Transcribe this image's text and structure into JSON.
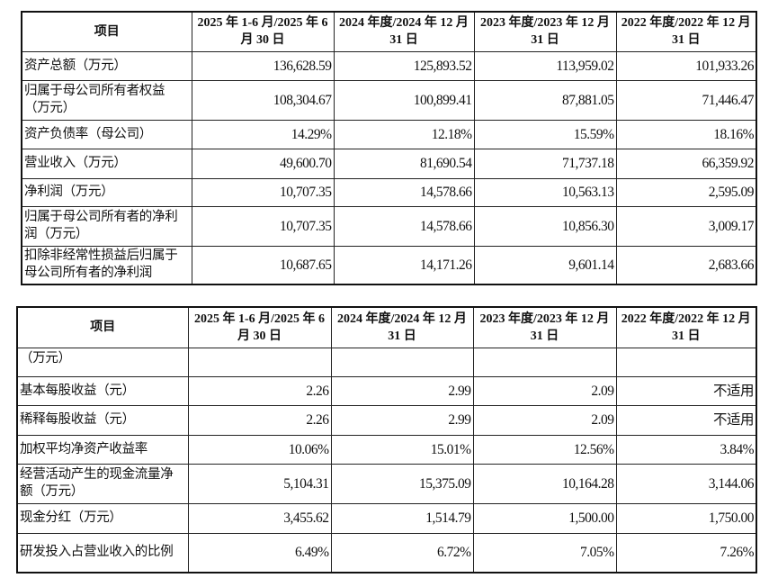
{
  "table1": {
    "headers": [
      "项目",
      "2025 年 1-6 月/2025 年 6 月 30 日",
      "2024 年度/2024 年 12 月 31 日",
      "2023 年度/2023 年 12 月 31 日",
      "2022 年度/2022 年 12 月 31 日"
    ],
    "rows": [
      {
        "label": "资产总额（万元）",
        "values": [
          "136,628.59",
          "125,893.52",
          "113,959.02",
          "101,933.26"
        ]
      },
      {
        "label": "归属于母公司所有者权益（万元）",
        "values": [
          "108,304.67",
          "100,899.41",
          "87,881.05",
          "71,446.47"
        ]
      },
      {
        "label": "资产负债率（母公司）",
        "values": [
          "14.29%",
          "12.18%",
          "15.59%",
          "18.16%"
        ]
      },
      {
        "label": "营业收入（万元）",
        "values": [
          "49,600.70",
          "81,690.54",
          "71,737.18",
          "66,359.92"
        ]
      },
      {
        "label": "净利润（万元）",
        "values": [
          "10,707.35",
          "14,578.66",
          "10,563.13",
          "2,595.09"
        ]
      },
      {
        "label": "归属于母公司所有者的净利润（万元）",
        "values": [
          "10,707.35",
          "14,578.66",
          "10,856.30",
          "3,009.17"
        ]
      },
      {
        "label": "扣除非经常性损益后归属于母公司所有者的净利润",
        "values": [
          "10,687.65",
          "14,171.26",
          "9,601.14",
          "2,683.66"
        ]
      }
    ]
  },
  "table2": {
    "headers": [
      "项目",
      "2025 年 1-6 月/2025 年 6 月 30 日",
      "2024 年度/2024 年 12 月 31 日",
      "2023 年度/2023 年 12 月 31 日",
      "2022 年度/2022 年 12 月 31 日"
    ],
    "rows": [
      {
        "label": "（万元）",
        "values": [
          "",
          "",
          "",
          ""
        ]
      },
      {
        "label": "基本每股收益（元）",
        "values": [
          "2.26",
          "2.99",
          "2.09",
          "不适用"
        ]
      },
      {
        "label": "稀释每股收益（元）",
        "values": [
          "2.26",
          "2.99",
          "2.09",
          "不适用"
        ]
      },
      {
        "label": "加权平均净资产收益率",
        "values": [
          "10.06%",
          "15.01%",
          "12.56%",
          "3.84%"
        ]
      },
      {
        "label": "经营活动产生的现金流量净额（万元）",
        "values": [
          "5,104.31",
          "15,375.09",
          "10,164.28",
          "3,144.06"
        ]
      },
      {
        "label": "现金分红（万元）",
        "values": [
          "3,455.62",
          "1,514.79",
          "1,500.00",
          "1,750.00"
        ]
      },
      {
        "label": "研发投入占营业收入的比例",
        "values": [
          "6.49%",
          "6.72%",
          "7.05%",
          "7.26%"
        ]
      }
    ]
  }
}
